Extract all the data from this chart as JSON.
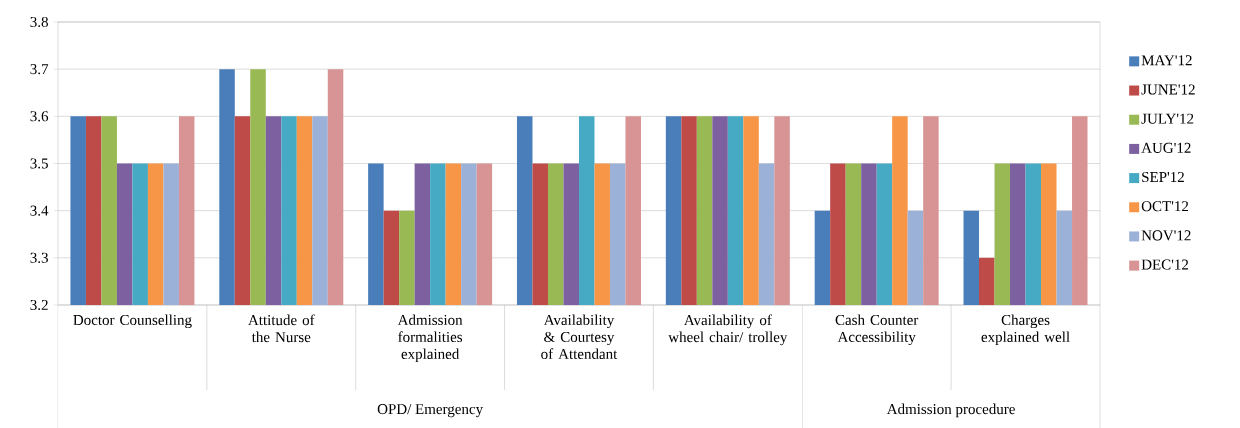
{
  "chart_data": {
    "type": "bar",
    "categories": [
      "Doctor Counselling",
      "Attitude of the Nurse",
      "Admission formalities explained",
      "Availability & Courtesy of Attendant",
      "Availability of wheel chair/ trolley",
      "Cash Counter Accessibility",
      "Charges explained well"
    ],
    "series": [
      {
        "name": "MAY'12",
        "color": "#4a7ebb",
        "values": [
          3.6,
          3.7,
          3.5,
          3.6,
          3.6,
          3.4,
          3.4
        ]
      },
      {
        "name": "JUNE'12",
        "color": "#be4b48",
        "values": [
          3.6,
          3.6,
          3.4,
          3.5,
          3.6,
          3.5,
          3.3
        ]
      },
      {
        "name": "JULY'12",
        "color": "#98b954",
        "values": [
          3.6,
          3.7,
          3.4,
          3.5,
          3.6,
          3.5,
          3.5
        ]
      },
      {
        "name": "AUG'12",
        "color": "#7d60a0",
        "values": [
          3.5,
          3.6,
          3.5,
          3.5,
          3.6,
          3.5,
          3.5
        ]
      },
      {
        "name": "SEP'12",
        "color": "#46aac5",
        "values": [
          3.5,
          3.6,
          3.5,
          3.6,
          3.6,
          3.5,
          3.5
        ]
      },
      {
        "name": "OCT'12",
        "color": "#f79646",
        "values": [
          3.5,
          3.6,
          3.5,
          3.5,
          3.6,
          3.6,
          3.5
        ]
      },
      {
        "name": "NOV'12",
        "color": "#9bb1d8",
        "values": [
          3.5,
          3.6,
          3.5,
          3.5,
          3.5,
          3.4,
          3.4
        ]
      },
      {
        "name": "DEC'12",
        "color": "#d89494",
        "values": [
          3.6,
          3.7,
          3.5,
          3.6,
          3.6,
          3.6,
          3.6
        ]
      }
    ],
    "ylim": [
      3.2,
      3.8
    ],
    "yticks": [
      3.2,
      3.3,
      3.4,
      3.5,
      3.6,
      3.7,
      3.8
    ],
    "annotations": [
      "OPD/ Emergency",
      "Admission procedure"
    ],
    "grid": "y",
    "legend": "right"
  }
}
